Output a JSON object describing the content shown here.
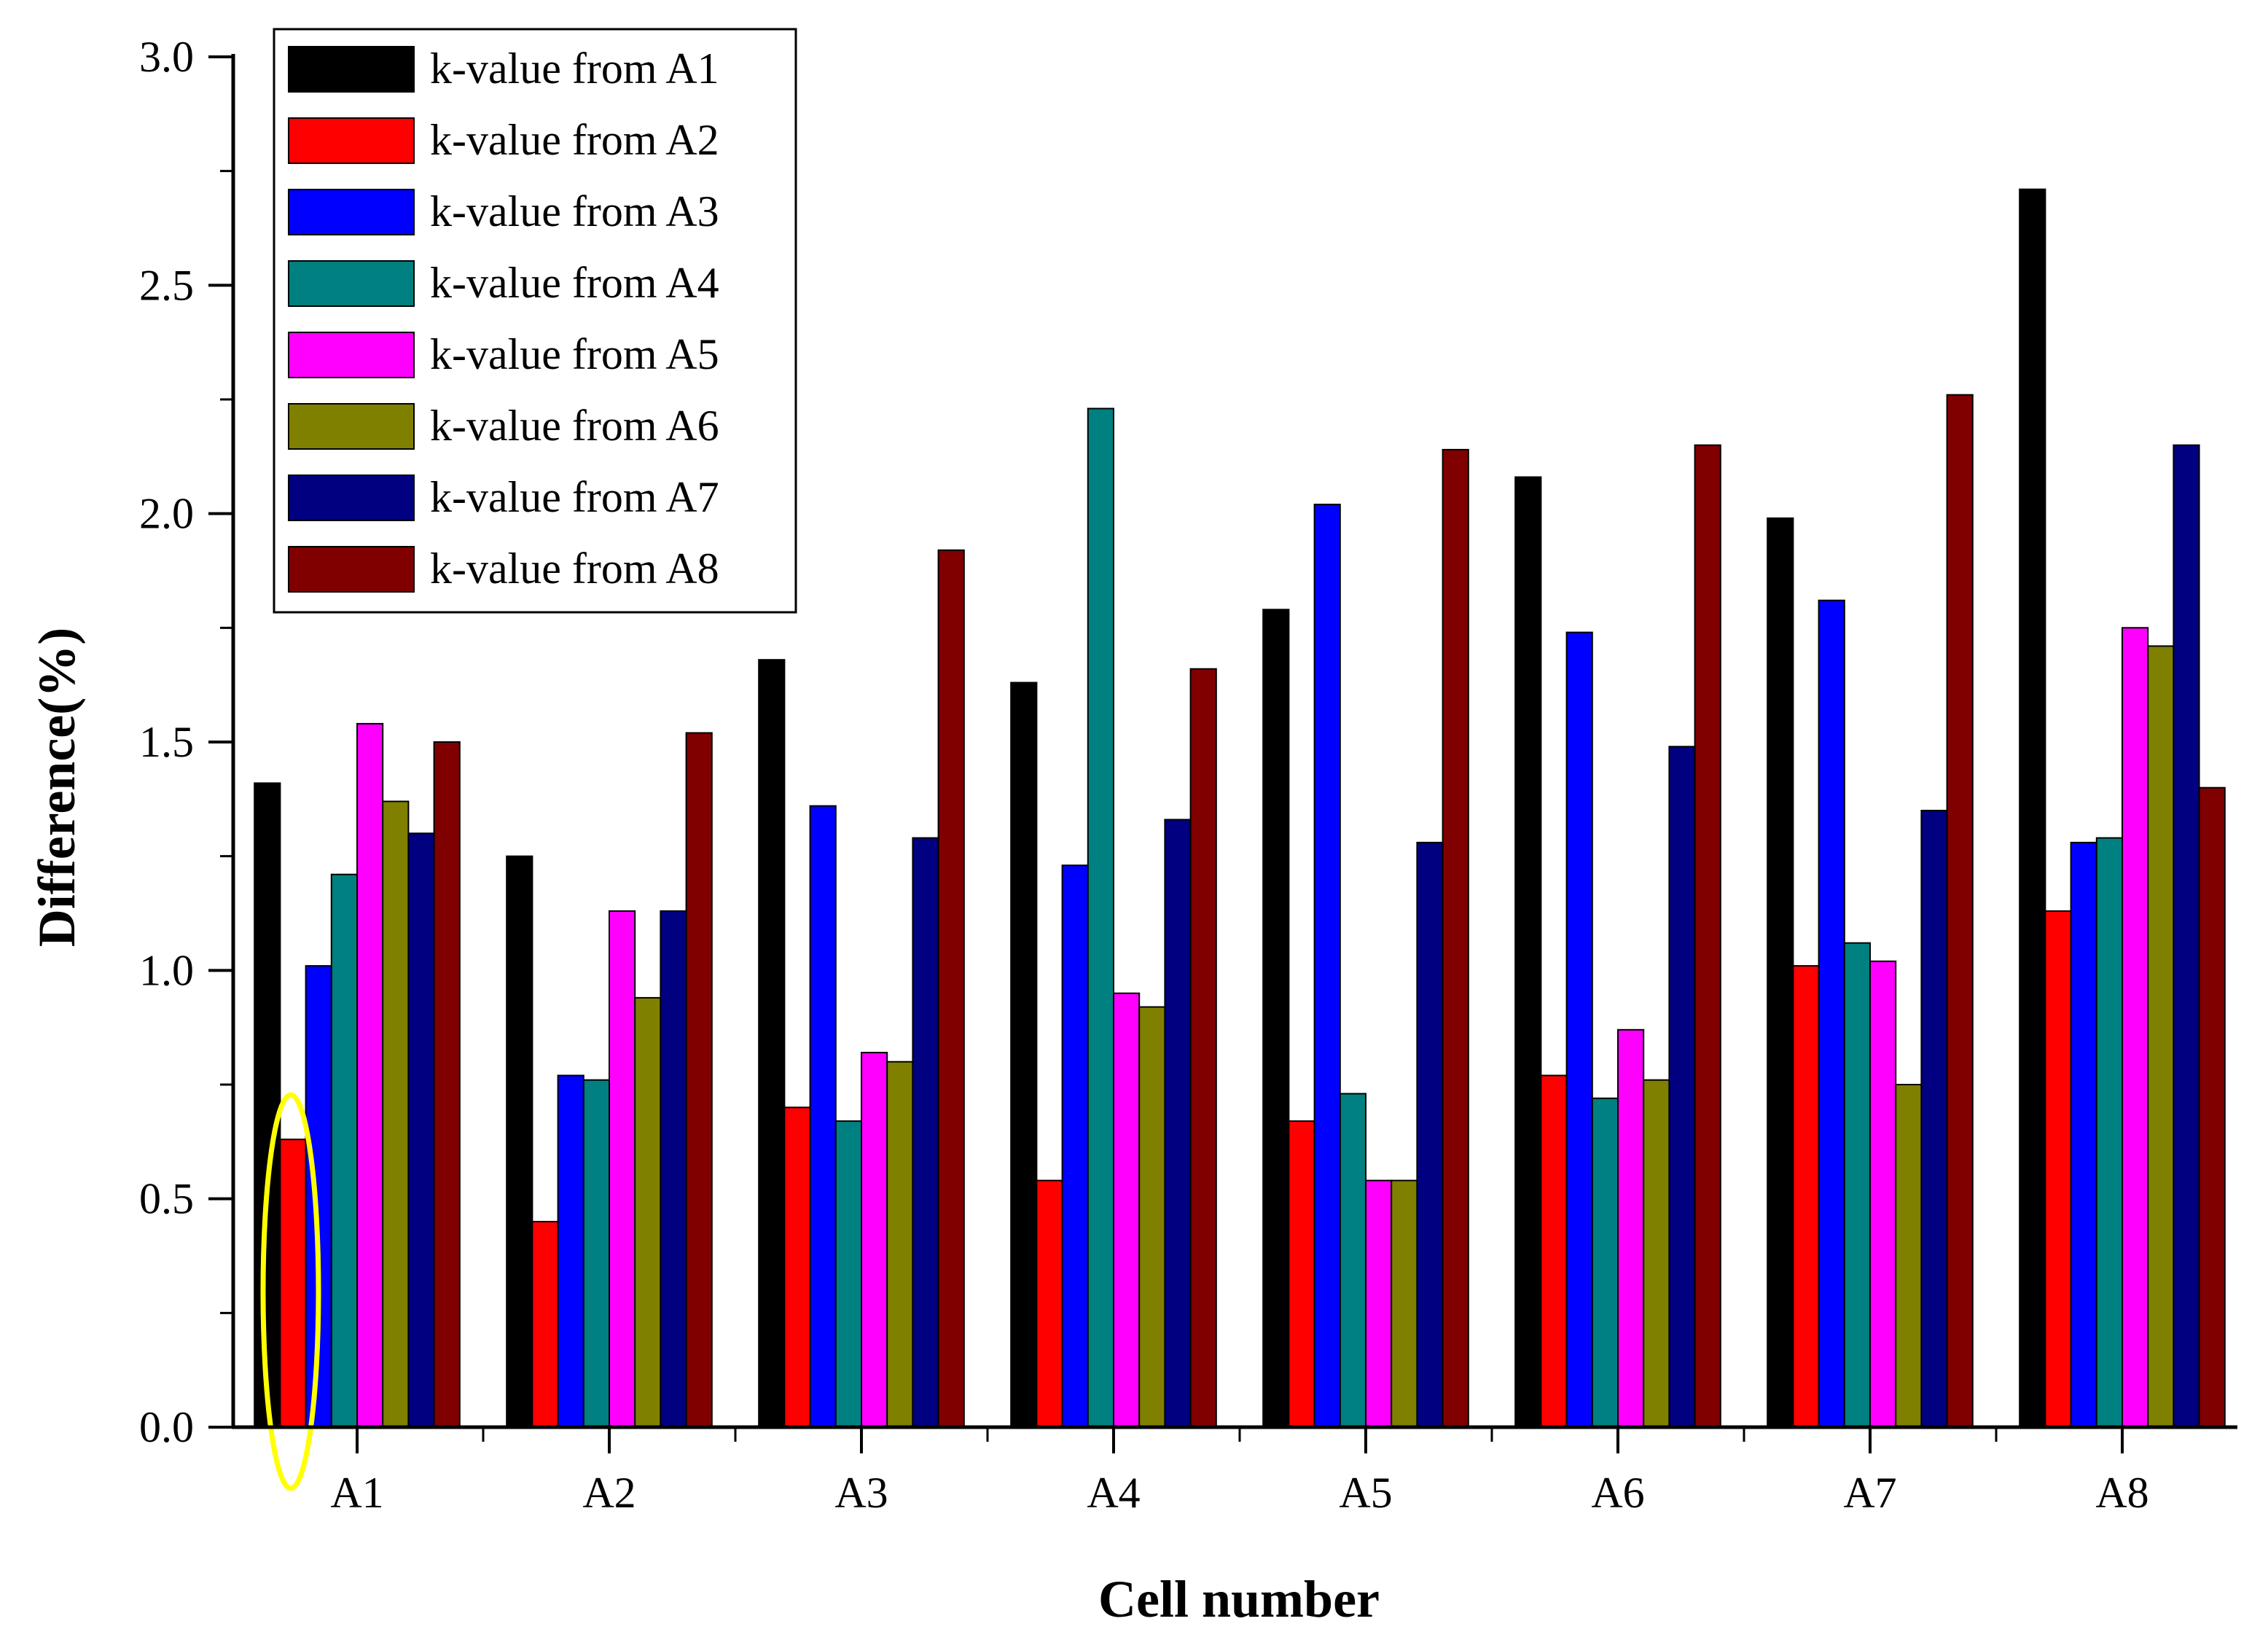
{
  "chart_data": {
    "type": "bar",
    "title": "",
    "xlabel": "Cell number",
    "ylabel": "Difference(%)",
    "ylim": [
      0,
      3.0
    ],
    "yticks": [
      "0.0",
      "0.5",
      "1.0",
      "1.5",
      "2.0",
      "2.5",
      "3.0"
    ],
    "categories": [
      "A1",
      "A2",
      "A3",
      "A4",
      "A5",
      "A6",
      "A7",
      "A8"
    ],
    "legend_position": "top-left",
    "annotation": "yellow ellipse highlighting the A1 k-value from A2 bar",
    "series": [
      {
        "name": "k-value from A1",
        "color": "#000000",
        "values": [
          1.41,
          1.25,
          1.68,
          1.63,
          1.79,
          2.08,
          1.99,
          2.71
        ]
      },
      {
        "name": "k-value from A2",
        "color": "#ff0000",
        "values": [
          0.63,
          0.45,
          0.7,
          0.54,
          0.67,
          0.77,
          1.01,
          1.13
        ]
      },
      {
        "name": "k-value from A3",
        "color": "#0000ff",
        "values": [
          1.01,
          0.77,
          1.36,
          1.23,
          2.02,
          1.74,
          1.81,
          1.28
        ]
      },
      {
        "name": "k-value from A4",
        "color": "#008080",
        "values": [
          1.21,
          0.76,
          0.67,
          2.23,
          0.73,
          0.72,
          1.06,
          1.29
        ]
      },
      {
        "name": "k-value from A5",
        "color": "#ff00ff",
        "values": [
          1.54,
          1.13,
          0.82,
          0.95,
          0.54,
          0.87,
          1.02,
          1.75
        ]
      },
      {
        "name": "k-value from A6",
        "color": "#808000",
        "values": [
          1.37,
          0.94,
          0.8,
          0.92,
          0.54,
          0.76,
          0.75,
          1.71
        ]
      },
      {
        "name": "k-value from A7",
        "color": "#000080",
        "values": [
          1.3,
          1.13,
          1.29,
          1.33,
          1.28,
          1.49,
          1.35,
          2.15
        ]
      },
      {
        "name": "k-value from A8",
        "color": "#800000",
        "values": [
          1.5,
          1.52,
          1.92,
          1.66,
          2.14,
          2.15,
          2.26,
          1.4
        ]
      }
    ]
  }
}
